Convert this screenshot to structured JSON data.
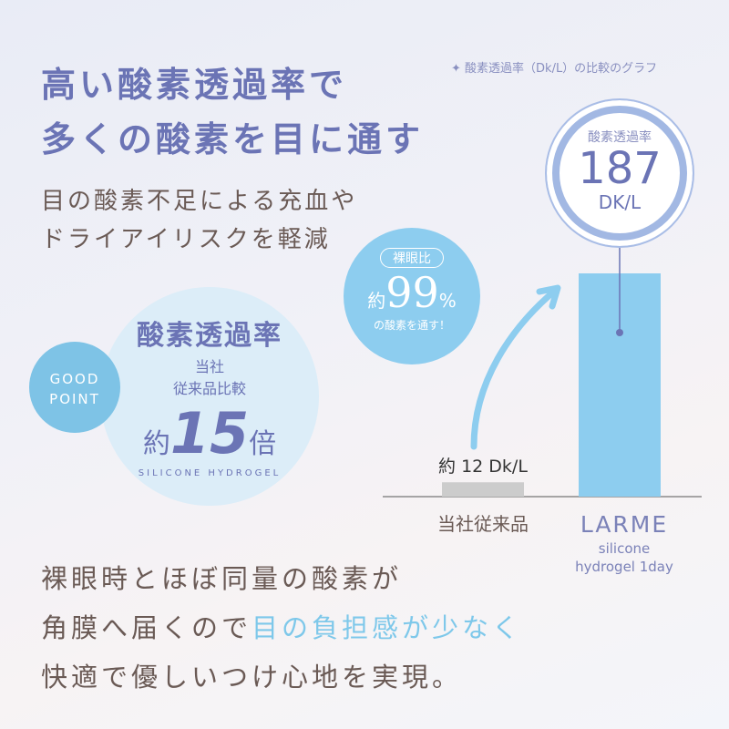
{
  "heading": {
    "line1": "高い酸素透過率で",
    "line2": "多くの酸素を目に通す"
  },
  "subtext": {
    "line1": "目の酸素不足による充血や",
    "line2": "ドライアイリスクを軽減"
  },
  "caption": "✦ 酸素透過率（Dk/L）の比較のグラフ",
  "highlight_circle": {
    "label": "酸素透過率",
    "value": "187",
    "unit": "DK/L"
  },
  "bubble": {
    "tag": "裸眼比",
    "prefix": "約",
    "value": "99",
    "percent": "%",
    "text": "の酸素を通す！"
  },
  "good_point": {
    "line1": "GOOD",
    "line2": "POINT"
  },
  "feature": {
    "title": "酸素透過率",
    "sub1": "当社",
    "sub2": "従来品比較",
    "prefix": "約",
    "value": "15",
    "suffix": "倍",
    "arc_text": "SILICONE HYDROGEL"
  },
  "chart_data": {
    "type": "bar",
    "categories": [
      "当社従来品",
      "LARME"
    ],
    "values": [
      12,
      187
    ],
    "unit": "Dk/L",
    "data_labels": [
      "約 12 Dk/L",
      "187 DK/L"
    ],
    "category_sub": [
      "",
      "silicone hydrogel 1day"
    ],
    "ylim": [
      0,
      187
    ],
    "colors": [
      "#cccccc",
      "#8dcdef"
    ]
  },
  "bottom": {
    "line1": "裸眼時とほぼ同量の酸素が",
    "line2a": "角膜へ届くので",
    "line2b": "目の負担感が少なく",
    "line3": "快適で優しいつけ心地を実現。"
  }
}
